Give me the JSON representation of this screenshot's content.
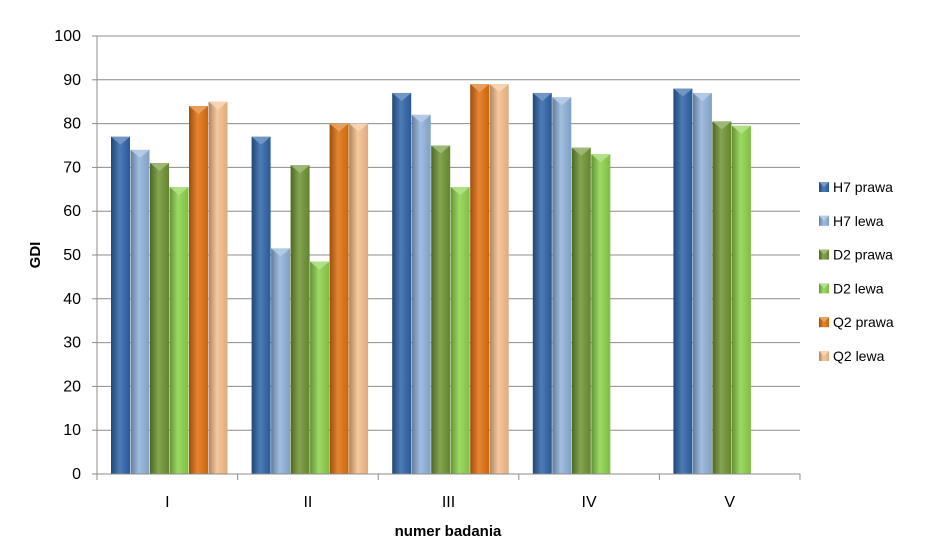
{
  "chart_data": {
    "type": "bar",
    "title": "",
    "xlabel": "numer badania",
    "ylabel": "GDI",
    "ylim": [
      0,
      100
    ],
    "yticks": [
      0,
      10,
      20,
      30,
      40,
      50,
      60,
      70,
      80,
      90,
      100
    ],
    "grid": true,
    "legend_position": "right",
    "categories": [
      "I",
      "II",
      "III",
      "IV",
      "V"
    ],
    "series": [
      {
        "name": "H7 prawa",
        "color": "#2E64A8",
        "values": [
          77,
          77,
          87,
          87,
          88
        ]
      },
      {
        "name": "H7 lewa",
        "color": "#8FB1DA",
        "values": [
          74,
          51.5,
          82,
          86,
          87
        ]
      },
      {
        "name": "D2 prawa",
        "color": "#6E9432",
        "values": [
          71,
          70.5,
          75,
          74.5,
          80.5
        ]
      },
      {
        "name": "D2 lewa",
        "color": "#8CD24A",
        "values": [
          65.5,
          48.5,
          65.5,
          73,
          79.5
        ]
      },
      {
        "name": "Q2 prawa",
        "color": "#E0700E",
        "values": [
          84,
          80,
          89,
          0,
          0
        ]
      },
      {
        "name": "Q2 lewa",
        "color": "#F5BE8C",
        "values": [
          85,
          80,
          89,
          0,
          0
        ]
      }
    ]
  }
}
